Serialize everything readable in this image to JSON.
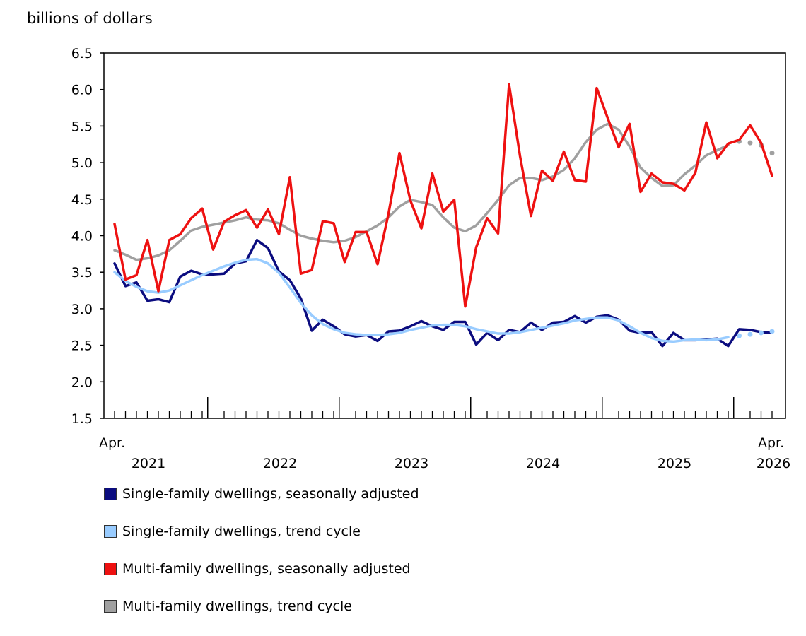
{
  "unit_label": "billions of dollars",
  "chart_data": {
    "type": "line",
    "ylabel": "billions of dollars",
    "ylim": [
      1.5,
      6.5
    ],
    "yticks": [
      "1.5",
      "2.0",
      "2.5",
      "3.0",
      "3.5",
      "4.0",
      "4.5",
      "5.0",
      "5.5",
      "6.0",
      "6.5"
    ],
    "x_start_label": "Apr.",
    "x_end_label": "Apr.",
    "year_labels": [
      "2021",
      "2022",
      "2023",
      "2024",
      "2025",
      "2026"
    ],
    "x_start": "2021-04",
    "x_end": "2026-04",
    "grid": false,
    "legend_position": "bottom",
    "series": [
      {
        "name": "Single-family dwellings, seasonally adjusted",
        "color": "#0b0c7f",
        "values": [
          3.62,
          3.31,
          3.36,
          3.11,
          3.13,
          3.09,
          3.44,
          3.52,
          3.47,
          3.47,
          3.48,
          3.62,
          3.65,
          3.94,
          3.83,
          3.51,
          3.39,
          3.14,
          2.7,
          2.85,
          2.76,
          2.65,
          2.62,
          2.64,
          2.56,
          2.69,
          2.7,
          2.76,
          2.83,
          2.76,
          2.71,
          2.82,
          2.82,
          2.51,
          2.67,
          2.57,
          2.71,
          2.68,
          2.81,
          2.71,
          2.81,
          2.82,
          2.9,
          2.81,
          2.89,
          2.91,
          2.85,
          2.7,
          2.67,
          2.68,
          2.49,
          2.67,
          2.57,
          2.57,
          2.58,
          2.59,
          2.49,
          2.72,
          2.71,
          2.68,
          2.67
        ]
      },
      {
        "name": "Single-family dwellings, trend cycle",
        "color": "#99ccff",
        "values": [
          3.5,
          3.38,
          3.3,
          3.24,
          3.22,
          3.25,
          3.32,
          3.39,
          3.46,
          3.52,
          3.58,
          3.63,
          3.67,
          3.68,
          3.62,
          3.49,
          3.29,
          3.08,
          2.91,
          2.79,
          2.72,
          2.67,
          2.65,
          2.64,
          2.64,
          2.65,
          2.67,
          2.71,
          2.74,
          2.77,
          2.78,
          2.78,
          2.76,
          2.72,
          2.69,
          2.66,
          2.66,
          2.68,
          2.71,
          2.74,
          2.77,
          2.8,
          2.84,
          2.86,
          2.88,
          2.88,
          2.84,
          2.76,
          2.67,
          2.6,
          2.56,
          2.55,
          2.57,
          2.58,
          2.57,
          2.58,
          2.61,
          2.63,
          2.65,
          2.67,
          2.69
        ],
        "dotted_after_index": 56
      },
      {
        "name": "Multi-family dwellings, seasonally adjusted",
        "color": "#ee1111",
        "values": [
          4.16,
          3.4,
          3.46,
          3.94,
          3.24,
          3.94,
          4.02,
          4.24,
          4.37,
          3.81,
          4.19,
          4.28,
          4.35,
          4.11,
          4.36,
          4.02,
          4.8,
          3.48,
          3.53,
          4.2,
          4.17,
          3.64,
          4.05,
          4.05,
          3.61,
          4.3,
          5.13,
          4.48,
          4.1,
          4.85,
          4.33,
          4.49,
          3.03,
          3.84,
          4.24,
          4.03,
          6.07,
          5.09,
          4.27,
          4.89,
          4.75,
          5.15,
          4.76,
          4.74,
          6.02,
          5.61,
          5.21,
          5.53,
          4.6,
          4.85,
          4.73,
          4.71,
          4.62,
          4.86,
          5.55,
          5.06,
          5.26,
          5.31,
          5.51,
          5.27,
          4.82
        ]
      },
      {
        "name": "Multi-family dwellings, trend cycle",
        "color": "#a0a0a0",
        "values": [
          3.8,
          3.74,
          3.67,
          3.69,
          3.73,
          3.8,
          3.93,
          4.07,
          4.12,
          4.15,
          4.18,
          4.21,
          4.25,
          4.22,
          4.21,
          4.17,
          4.08,
          4.0,
          3.96,
          3.93,
          3.91,
          3.93,
          3.98,
          4.06,
          4.14,
          4.25,
          4.4,
          4.49,
          4.46,
          4.42,
          4.25,
          4.11,
          4.06,
          4.14,
          4.31,
          4.49,
          4.69,
          4.79,
          4.79,
          4.76,
          4.81,
          4.9,
          5.06,
          5.28,
          5.45,
          5.53,
          5.45,
          5.22,
          4.93,
          4.79,
          4.68,
          4.69,
          4.84,
          4.96,
          5.1,
          5.17,
          5.24,
          5.29,
          5.27,
          5.24,
          5.13
        ],
        "dotted_after_index": 56
      }
    ]
  }
}
